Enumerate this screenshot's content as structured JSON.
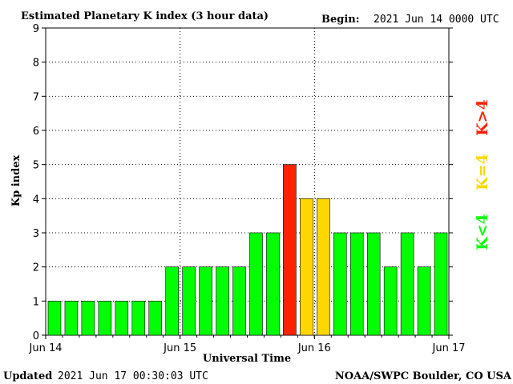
{
  "header": {
    "title": "Estimated Planetary K index (3 hour data)",
    "begin_label": "Begin:",
    "begin_value": "2021 Jun 14 0000 UTC"
  },
  "footer": {
    "updated_label": "Updated",
    "updated_value": "2021 Jun 17 00:30:03 UTC",
    "source": "NOAA/SWPC Boulder, CO USA"
  },
  "legend": {
    "low": "K<4",
    "equal": "K=4",
    "high": "K>4"
  },
  "colors": {
    "low": "#00ff00",
    "equal": "#ffd700",
    "high": "#ff2200"
  },
  "chart_data": {
    "type": "bar",
    "title": "Estimated Planetary K index (3 hour data)",
    "xlabel": "Universal Time",
    "ylabel": "Kp index",
    "ylim": [
      0,
      9
    ],
    "yticks": [
      0,
      1,
      2,
      3,
      4,
      5,
      6,
      7,
      8,
      9
    ],
    "xtick_labels": [
      "Jun 14",
      "Jun 15",
      "Jun 16",
      "Jun 17"
    ],
    "grid": true,
    "values": [
      1,
      1,
      1,
      1,
      1,
      1,
      1,
      2,
      2,
      2,
      2,
      2,
      3,
      3,
      5,
      4,
      4,
      3,
      3,
      3,
      2,
      3,
      2,
      3
    ]
  }
}
